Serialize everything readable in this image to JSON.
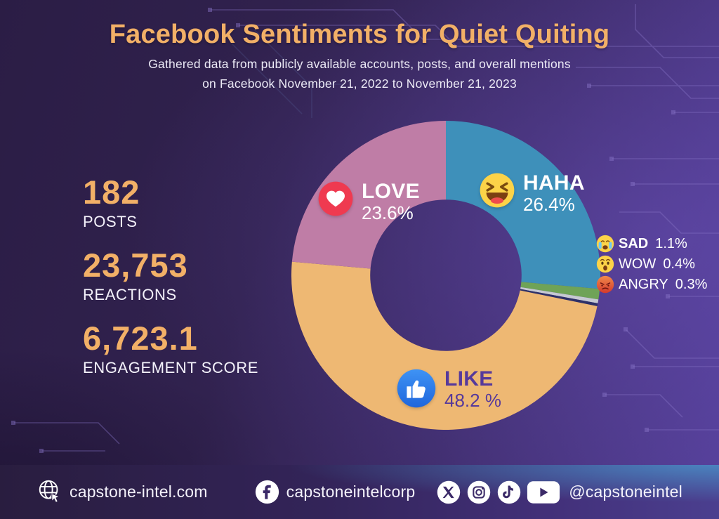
{
  "header": {
    "title": "Facebook Sentiments for Quiet Quiting",
    "subtitle_line1": "Gathered data from publicly available accounts, posts, and overall mentions",
    "subtitle_line2": "on Facebook November 21, 2022 to November 21, 2023"
  },
  "stats": [
    {
      "value": "182",
      "label": "POSTS"
    },
    {
      "value": "23,753",
      "label": "REACTIONS"
    },
    {
      "value": "6,723.1",
      "label": "ENGAGEMENT SCORE"
    }
  ],
  "chart_data": {
    "type": "pie",
    "variant": "donut",
    "title": "Facebook Sentiments for Quiet Quiting",
    "start_angle_deg": 0,
    "direction": "clockwise",
    "inner_radius_ratio": 0.49,
    "slices": [
      {
        "label": "HAHA",
        "value": 26.4,
        "pct_text": "26.4%",
        "color": "#3e90ba",
        "icon": "haha-emoji"
      },
      {
        "label": "SAD",
        "value": 1.1,
        "pct_text": "1.1%",
        "color": "#6fa357",
        "icon": "sad-emoji"
      },
      {
        "label": "WOW",
        "value": 0.4,
        "pct_text": "0.4%",
        "color": "#c6c9d2",
        "icon": "wow-emoji"
      },
      {
        "label": "ANGRY",
        "value": 0.3,
        "pct_text": "0.3%",
        "color": "#2e3168",
        "icon": "angry-emoji"
      },
      {
        "label": "LIKE",
        "value": 48.2,
        "pct_text": "48.2 %",
        "color": "#eeb873",
        "icon": "like-icon"
      },
      {
        "label": "LOVE",
        "value": 23.6,
        "pct_text": "23.6%",
        "color": "#bf7da6",
        "icon": "love-icon"
      }
    ]
  },
  "footer": {
    "website": "capstone-intel.com",
    "facebook": "capstoneintelcorp",
    "handle": "@capstoneintel",
    "social_icons": [
      "x-icon",
      "instagram-icon",
      "tiktok-icon",
      "youtube-icon"
    ]
  },
  "colors": {
    "accent_orange": "#f2b067",
    "background_dark": "#2b1d45",
    "background_light": "#55409a",
    "like_text_purple": "#56399b",
    "heart_red": "#ef3a50",
    "like_blue": "#2e7df0",
    "emoji_yellow": "#fcd348"
  }
}
